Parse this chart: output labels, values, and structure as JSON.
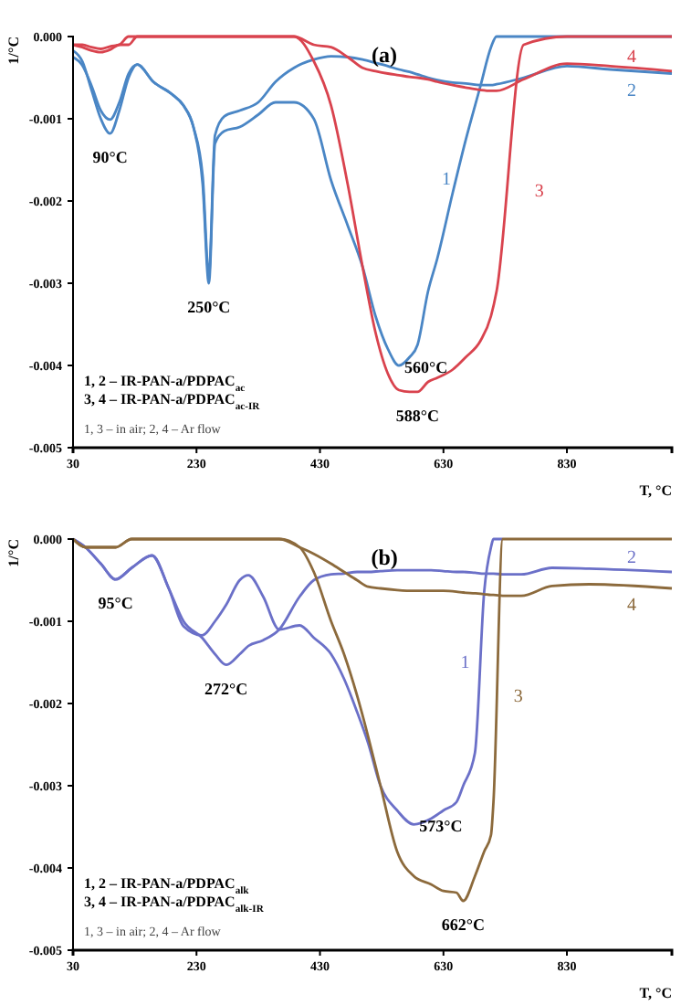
{
  "chart_data": [
    {
      "type": "line",
      "title": "(a)",
      "xlabel": "T, °C",
      "ylabel": "1/°C",
      "xlim": [
        30,
        1000
      ],
      "xticks": [
        30,
        230,
        430,
        630,
        830
      ],
      "ylim": [
        -0.005,
        0
      ],
      "yticks": [
        {
          "value": 0,
          "label": "0.000"
        },
        -0.001,
        -0.002,
        -0.003,
        -0.004,
        -0.005
      ],
      "grid": false,
      "legend": false,
      "x": [
        30,
        45,
        60,
        75,
        90,
        105,
        120,
        134,
        160,
        190,
        209,
        225,
        240,
        250,
        260,
        275,
        300,
        330,
        358,
        388,
        420,
        448,
        475,
        499,
        520,
        540,
        558,
        575,
        588,
        605,
        620,
        645,
        666,
        690,
        707,
        716,
        760,
        830,
        900,
        1000
      ],
      "series": [
        {
          "name": "1",
          "color": "#4a86c5",
          "values": [
            -0.00017,
            -0.0003,
            -0.00065,
            -0.001,
            -0.00118,
            -0.0009,
            -0.0005,
            -0.00034,
            -0.00055,
            -0.0007,
            -0.00084,
            -0.0011,
            -0.0018,
            -0.003,
            -0.0013,
            -0.00115,
            -0.0011,
            -0.00095,
            -0.0008,
            -0.0008,
            -0.001,
            -0.00175,
            -0.0023,
            -0.0028,
            -0.0034,
            -0.0038,
            -0.004,
            -0.0039,
            -0.00375,
            -0.0031,
            -0.0027,
            -0.0019,
            -0.00126,
            -0.0006,
            -0.00013,
            0,
            0,
            0,
            0,
            0
          ]
        },
        {
          "name": "2",
          "color": "#4a86c5",
          "values": [
            -0.00025,
            -0.00035,
            -0.0006,
            -0.0009,
            -0.00101,
            -0.0008,
            -0.00045,
            -0.00034,
            -0.00055,
            -0.0007,
            -0.00084,
            -0.0011,
            -0.0017,
            -0.0029,
            -0.0012,
            -0.00097,
            -0.0009,
            -0.0008,
            -0.00055,
            -0.00038,
            -0.00028,
            -0.00024,
            -0.00025,
            -0.00028,
            -0.00032,
            -0.00036,
            -0.0004,
            -0.00043,
            -0.00046,
            -0.0005,
            -0.00053,
            -0.00056,
            -0.00057,
            -0.00059,
            -0.00059,
            -0.00058,
            -0.0005,
            -0.00036,
            -0.0004,
            -0.00045
          ]
        },
        {
          "name": "3",
          "color": "#d9434e",
          "values": [
            -0.0001,
            -0.00013,
            -0.00017,
            -0.00019,
            -0.00016,
            -0.0001,
            -0.0001,
            0,
            0,
            0,
            0,
            0,
            0,
            0,
            0,
            0,
            0,
            0,
            0,
            0,
            -0.0003,
            -0.00084,
            -0.0018,
            -0.0028,
            -0.0036,
            -0.0041,
            -0.0043,
            -0.00432,
            -0.00432,
            -0.0042,
            -0.00415,
            -0.00405,
            -0.0039,
            -0.0037,
            -0.0034,
            -0.0031,
            -0.0001,
            0,
            0,
            0
          ]
        },
        {
          "name": "4",
          "color": "#d9434e",
          "values": [
            -0.0001,
            -0.0001,
            -0.00013,
            -0.00015,
            -0.00012,
            -0.0001,
            0,
            0,
            0,
            0,
            0,
            0,
            0,
            0,
            0,
            0,
            0,
            0,
            0,
            0,
            -0.0001,
            -0.00013,
            -0.00025,
            -0.00038,
            -0.00042,
            -0.00045,
            -0.00047,
            -0.00049,
            -0.0005,
            -0.00052,
            -0.00055,
            -0.00059,
            -0.00062,
            -0.00065,
            -0.00066,
            -0.00066,
            -0.00052,
            -0.00033,
            -0.00036,
            -0.00042
          ]
        }
      ],
      "annotations": [
        {
          "text": "90°C",
          "x": 90,
          "y": -0.00118
        },
        {
          "text": "250°C",
          "x": 250,
          "y": -0.003
        },
        {
          "text": "560°C",
          "x": 558,
          "y": -0.004
        },
        {
          "text": "588°C",
          "x": 588,
          "y": -0.00432
        },
        "1, 2 – IR-PAN-a/PDPAC$_{ac}$",
        "3, 4 – IR-PAN-a/PDPAC$_{ac-IR}$",
        "1, 3 – in air; 2, 4 – Ar flow"
      ]
    },
    {
      "type": "line",
      "title": "(b)",
      "xlabel": "T, °C",
      "ylabel": "1/°C",
      "xlim": [
        30,
        1000
      ],
      "xticks": [
        30,
        230,
        430,
        630,
        830
      ],
      "ylim": [
        -0.005,
        0
      ],
      "yticks": [
        {
          "value": 0,
          "label": "0.000"
        },
        -0.001,
        -0.002,
        -0.003,
        -0.004,
        -0.005
      ],
      "grid": false,
      "legend": false,
      "x": [
        30,
        50,
        75,
        99,
        125,
        158,
        185,
        209,
        239,
        260,
        278,
        300,
        314,
        338,
        364,
        397,
        420,
        448,
        469,
        490,
        508,
        528,
        555,
        582,
        610,
        630,
        651,
        662,
        681,
        696,
        707,
        711,
        726,
        756,
        806,
        866,
        1000
      ],
      "series": [
        {
          "name": "1",
          "color": "#6b70c8",
          "values": [
            0,
            -0.0001,
            -0.0003,
            -0.00049,
            -0.00035,
            -0.0002,
            -0.0006,
            -0.00106,
            -0.00117,
            -0.001,
            -0.0008,
            -0.0005,
            -0.00044,
            -0.0007,
            -0.0011,
            -0.00105,
            -0.0012,
            -0.0014,
            -0.0017,
            -0.0021,
            -0.00248,
            -0.003,
            -0.0033,
            -0.00347,
            -0.0034,
            -0.0033,
            -0.0032,
            -0.003,
            -0.0026,
            -0.00064,
            -0.0001,
            0,
            0,
            null,
            null,
            null,
            null
          ]
        },
        {
          "name": "2",
          "color": "#6b70c8",
          "values": [
            0,
            -0.0001,
            -0.0003,
            -0.00049,
            -0.00035,
            -0.0002,
            -0.0006,
            -0.001,
            -0.0012,
            -0.0014,
            -0.00153,
            -0.0014,
            -0.0013,
            -0.00123,
            -0.0011,
            -0.0007,
            -0.0005,
            -0.00043,
            -0.00042,
            -0.0004,
            -0.0004,
            -0.00039,
            -0.00038,
            -0.00038,
            -0.00038,
            -0.00039,
            -0.0004,
            -0.0004,
            -0.00041,
            -0.00042,
            -0.00042,
            -0.00042,
            -0.00043,
            -0.00043,
            -0.00035,
            -0.00036,
            -0.0004
          ]
        },
        {
          "name": "3",
          "color": "#8c6a3c",
          "values": [
            0,
            -0.0001,
            -0.0001,
            -0.0001,
            0,
            0,
            0,
            0,
            0,
            0,
            0,
            0,
            0,
            0,
            0,
            -0.0001,
            -0.0004,
            -0.001,
            -0.0014,
            -0.0019,
            -0.0024,
            -0.003,
            -0.0038,
            -0.0041,
            -0.0042,
            -0.00428,
            -0.0043,
            -0.0044,
            -0.0041,
            -0.0038,
            -0.0036,
            -0.0032,
            0,
            0,
            0,
            0,
            0
          ]
        },
        {
          "name": "4",
          "color": "#8c6a3c",
          "values": [
            0,
            -0.0001,
            -0.0001,
            -0.0001,
            0,
            0,
            0,
            0,
            0,
            0,
            0,
            0,
            0,
            0,
            0,
            -0.0001,
            -0.00018,
            -0.0003,
            -0.0004,
            -0.0005,
            -0.00058,
            -0.0006,
            -0.00062,
            -0.00063,
            -0.00063,
            -0.00063,
            -0.00064,
            -0.00065,
            -0.00066,
            -0.00067,
            -0.00068,
            -0.00068,
            -0.00069,
            -0.00069,
            -0.00057,
            -0.00055,
            -0.0006
          ]
        }
      ],
      "annotations": [
        {
          "text": "95°C",
          "x": 99,
          "y": -0.00049
        },
        {
          "text": "272°C",
          "x": 278,
          "y": -0.00153
        },
        {
          "text": "573°C",
          "x": 582,
          "y": -0.00347
        },
        {
          "text": "662°C",
          "x": 662,
          "y": -0.0044
        },
        "1, 2 – IR-PAN-a/PDPAC$_{alk}$",
        "3, 4 – IR-PAN-a/PDPAC$_{alk-IR}$",
        "1, 3 – in air; 2, 4 – Ar flow"
      ]
    }
  ]
}
